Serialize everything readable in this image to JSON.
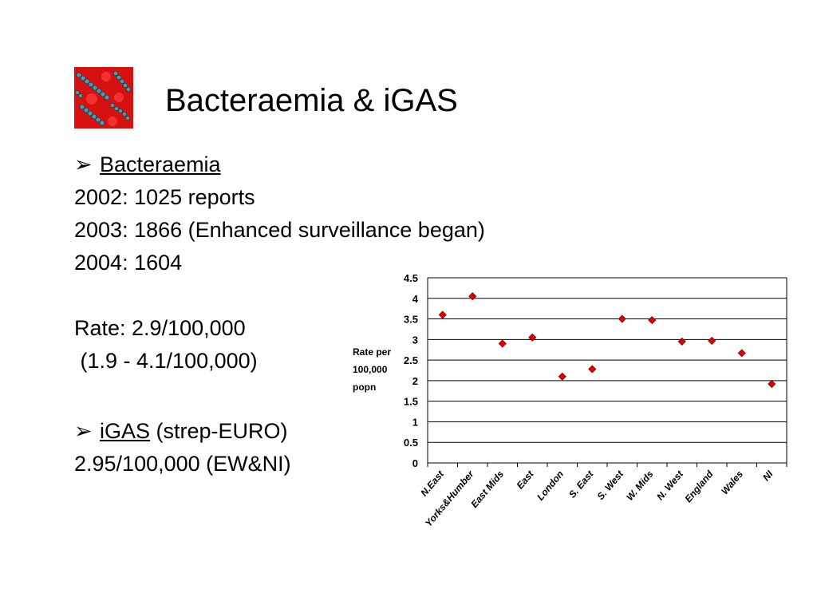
{
  "slide": {
    "title": "Bacteraemia & iGAS",
    "logo_icon": "bacteria-image-icon"
  },
  "section1": {
    "bullet": "➢",
    "heading": "Bacteraemia",
    "line2002": "2002:  1025 reports",
    "line2003": "2003:  1866  (Enhanced surveillance began)",
    "line2004": "2004:  1604",
    "rate": "Rate: 2.9/100,000",
    "range": " (1.9 - 4.1/100,000)"
  },
  "section2": {
    "bullet": "➢",
    "heading": "iGAS",
    "heading_suffix": " (strep-EURO)",
    "value": "2.95/100,000 (EW&NI)"
  },
  "chart_data": {
    "type": "scatter",
    "ylabel_lines": [
      "Rate per",
      "100,000",
      "popn"
    ],
    "ylim": [
      0,
      4.5
    ],
    "yticks": [
      "0",
      "0.5",
      "1",
      "1.5",
      "2",
      "2.5",
      "3",
      "3.5",
      "4",
      "4.5"
    ],
    "categories": [
      "N.East",
      "Yorks&Humber",
      "East Mids",
      "East",
      "London",
      "S. East",
      "S. West",
      "W. Mids",
      "N. West",
      "England",
      "Wales",
      "NI"
    ],
    "values": [
      3.6,
      4.05,
      2.9,
      3.05,
      2.1,
      2.28,
      3.5,
      3.47,
      2.95,
      2.97,
      2.67,
      1.92
    ],
    "marker": "diamond",
    "marker_color": "#e00000",
    "grid": true
  }
}
